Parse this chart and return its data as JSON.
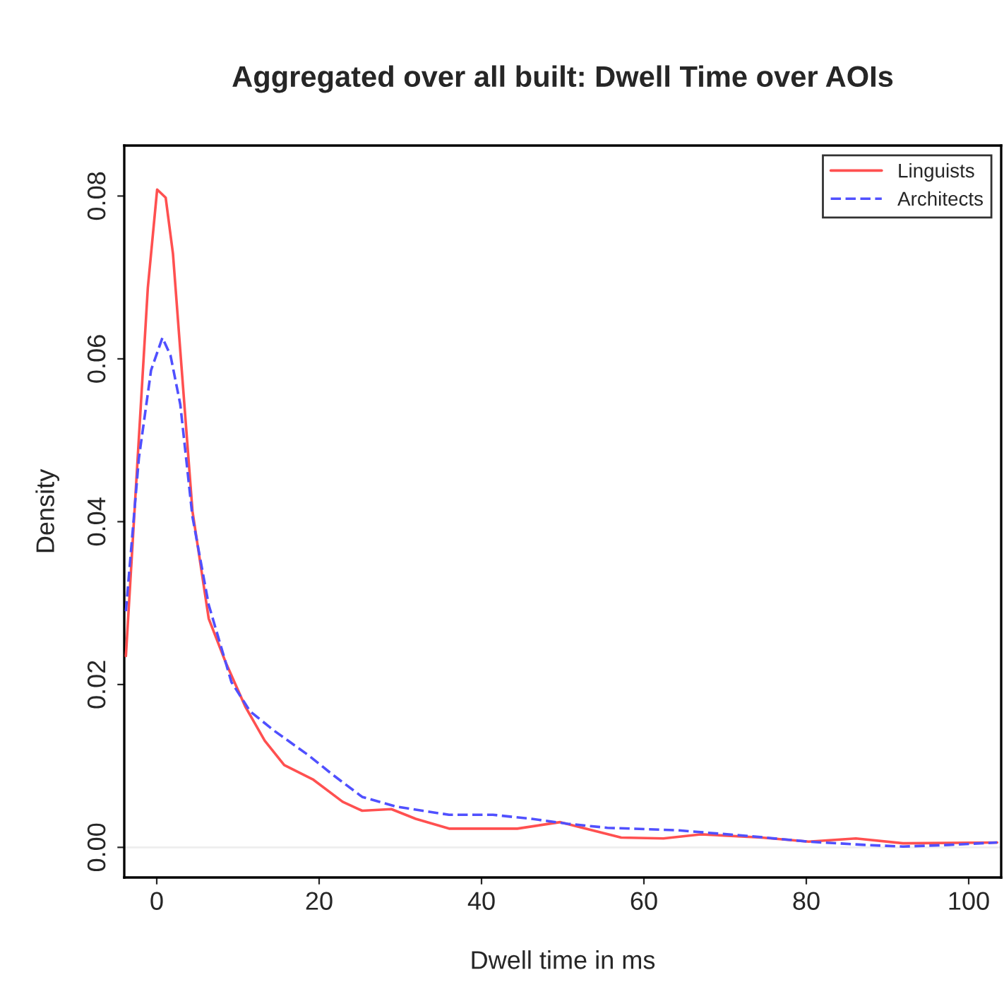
{
  "chart_data": {
    "type": "line",
    "title": "Aggregated over all built: Dwell Time over AOIs",
    "xlabel": "Dwell time in ms",
    "ylabel": "Density",
    "xlim": [
      -4,
      104
    ],
    "xticks": [
      0,
      20,
      40,
      60,
      80,
      100
    ],
    "ylim": [
      -0.0037,
      0.0862
    ],
    "yticks": [
      {
        "value": 0,
        "label": "0.00"
      },
      {
        "value": 0.02,
        "label": "0.02"
      },
      {
        "value": 0.04,
        "label": "0.04"
      },
      {
        "value": 0.06,
        "label": "0.06"
      },
      {
        "value": 0.08,
        "label": "0.08"
      }
    ],
    "grid": false,
    "legend": "top right",
    "marker": "none",
    "ref_lines": [
      {
        "axis": "y",
        "value": 0,
        "label": null,
        "color": "#eeeeee"
      }
    ],
    "series": [
      {
        "name": "Linguists",
        "color": "#ff5050",
        "line_style": "solid",
        "x": [
          -3.8,
          -1.1,
          0.05,
          1.1,
          2.0,
          2.9,
          4.4,
          6.4,
          8.5,
          10.9,
          13.3,
          15.7,
          19.3,
          22.9,
          25.3,
          28.9,
          31.9,
          36.0,
          44.4,
          49.7,
          57.2,
          62.4,
          67.0,
          74.5,
          80.3,
          86.1,
          91.9,
          103.5
        ],
        "values": [
          0.0235,
          0.0687,
          0.0808,
          0.0798,
          0.0729,
          0.061,
          0.0413,
          0.0281,
          0.0227,
          0.0173,
          0.0131,
          0.0101,
          0.0083,
          0.0056,
          0.0045,
          0.0047,
          0.0035,
          0.0023,
          0.0023,
          0.0031,
          0.0012,
          0.0011,
          0.0016,
          0.0012,
          0.0007,
          0.0011,
          0.0005,
          0.0006
        ]
      },
      {
        "name": "Architects",
        "color": "#5050ff",
        "line_style": "dashed",
        "x": [
          -3.8,
          -2.2,
          -0.7,
          0.7,
          1.7,
          2.9,
          4.4,
          6.4,
          9.2,
          11.5,
          14.5,
          18.7,
          21.7,
          25.3,
          29.5,
          36.0,
          41.4,
          46.2,
          50.6,
          55.5,
          64.1,
          72.8,
          80.3,
          87.2,
          91.9,
          97.6,
          103.5
        ],
        "values": [
          0.029,
          0.0478,
          0.0586,
          0.0626,
          0.0604,
          0.0544,
          0.0406,
          0.0298,
          0.0203,
          0.0167,
          0.0143,
          0.0113,
          0.0089,
          0.0062,
          0.005,
          0.004,
          0.004,
          0.0035,
          0.0029,
          0.0024,
          0.0021,
          0.0014,
          0.0007,
          0.0003,
          0.0001,
          0.0003,
          0.0006
        ]
      }
    ]
  }
}
